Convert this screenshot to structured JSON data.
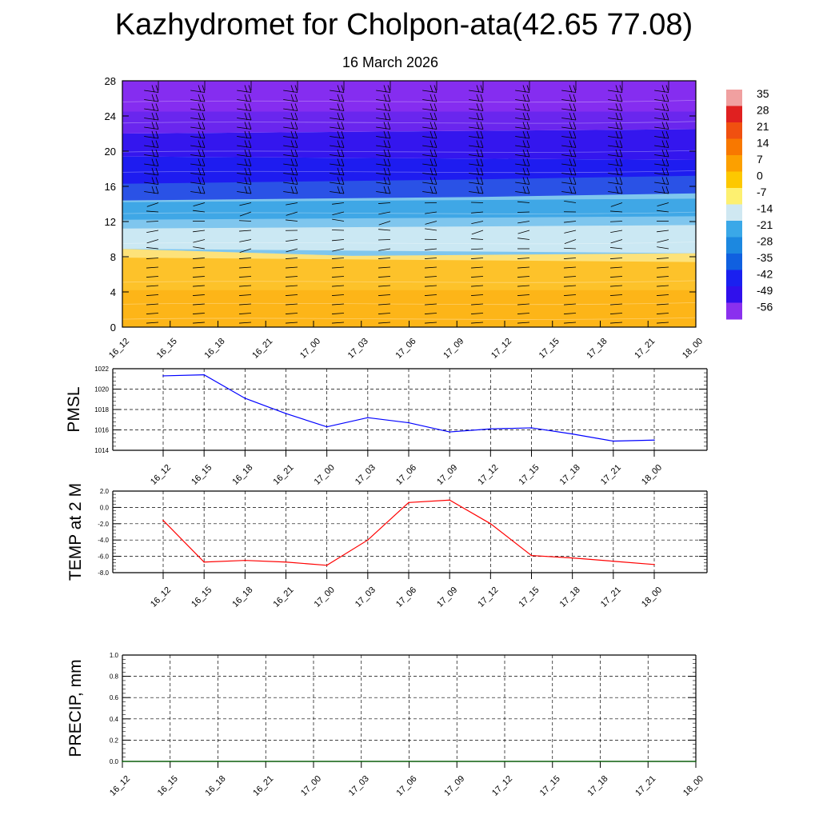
{
  "title": "Kazhydromet for Cholpon-ata(42.65 77.08)",
  "subtitle": "16 March 2026",
  "time_labels": [
    "16_12",
    "16_15",
    "16_18",
    "16_21",
    "17_00",
    "17_03",
    "17_06",
    "17_09",
    "17_12",
    "17_15",
    "17_18",
    "17_21",
    "18_00"
  ],
  "chart_data": [
    {
      "type": "heatmap",
      "title": "",
      "xlabel": "",
      "ylabel": "",
      "x": [
        "16_12",
        "16_15",
        "16_18",
        "16_21",
        "17_00",
        "17_03",
        "17_06",
        "17_09",
        "17_12",
        "17_15",
        "17_18",
        "17_21",
        "18_00"
      ],
      "y_ticks": [
        0,
        4,
        8,
        12,
        16,
        20,
        24,
        28
      ],
      "ylim": [
        0,
        28
      ],
      "colorbar": {
        "labels": [
          "35",
          "28",
          "21",
          "14",
          "7",
          "0",
          "-7",
          "-14",
          "-21",
          "-28",
          "-35",
          "-42",
          "-49",
          "-56"
        ],
        "colors": [
          "#f0a0a0",
          "#e02020",
          "#f05010",
          "#f87800",
          "#fca000",
          "#fdc800",
          "#fdf070",
          "#cfe8f2",
          "#3aa8e8",
          "#1c88e0",
          "#1060e0",
          "#1a20f0",
          "#3010ec",
          "#8a30ee"
        ]
      },
      "overlay": "wind barbs"
    },
    {
      "type": "line",
      "title": "",
      "xlabel": "",
      "ylabel": "PMSL",
      "x": [
        "16_12",
        "16_15",
        "16_18",
        "16_21",
        "17_00",
        "17_03",
        "17_06",
        "17_09",
        "17_12",
        "17_15",
        "17_18",
        "17_21",
        "18_00"
      ],
      "series": [
        {
          "values": [
            1021.3,
            1021.4,
            1019.1,
            1017.6,
            1016.3,
            1017.2,
            1016.7,
            1015.8,
            1016.1,
            1016.2,
            1015.6,
            1014.9,
            1015.0
          ],
          "color": "#0000ff"
        }
      ],
      "y_ticks": [
        "1014",
        "1016",
        "1018",
        "1020",
        "1022"
      ],
      "ylim": [
        1014,
        1022
      ],
      "grid": true
    },
    {
      "type": "line",
      "title": "",
      "xlabel": "",
      "ylabel": "TEMP at 2 M",
      "x": [
        "16_12",
        "16_15",
        "16_18",
        "16_21",
        "17_00",
        "17_03",
        "17_06",
        "17_09",
        "17_12",
        "17_15",
        "17_18",
        "17_21",
        "18_00"
      ],
      "series": [
        {
          "values": [
            -1.6,
            -6.7,
            -6.5,
            -6.7,
            -7.1,
            -4.0,
            0.6,
            0.9,
            -2.0,
            -5.9,
            -6.2,
            -6.6,
            -7.0
          ],
          "color": "#ff0000"
        }
      ],
      "y_ticks": [
        "-8.0",
        "-6.0",
        "-4.0",
        "-2.0",
        "0.0",
        "2.0"
      ],
      "ylim": [
        -8,
        2
      ],
      "grid": true
    },
    {
      "type": "line",
      "title": "",
      "xlabel": "",
      "ylabel": "PRECIP, mm",
      "x": [
        "16_12",
        "16_15",
        "16_18",
        "16_21",
        "17_00",
        "17_03",
        "17_06",
        "17_09",
        "17_12",
        "17_15",
        "17_18",
        "17_21",
        "18_00"
      ],
      "series": [
        {
          "values": [
            0,
            0,
            0,
            0,
            0,
            0,
            0,
            0,
            0,
            0,
            0,
            0,
            0
          ],
          "color": "#006400"
        }
      ],
      "y_ticks": [
        "0.0",
        "0.2",
        "0.4",
        "0.6",
        "0.8",
        "1.0"
      ],
      "ylim": [
        0,
        1
      ],
      "grid": true
    }
  ]
}
